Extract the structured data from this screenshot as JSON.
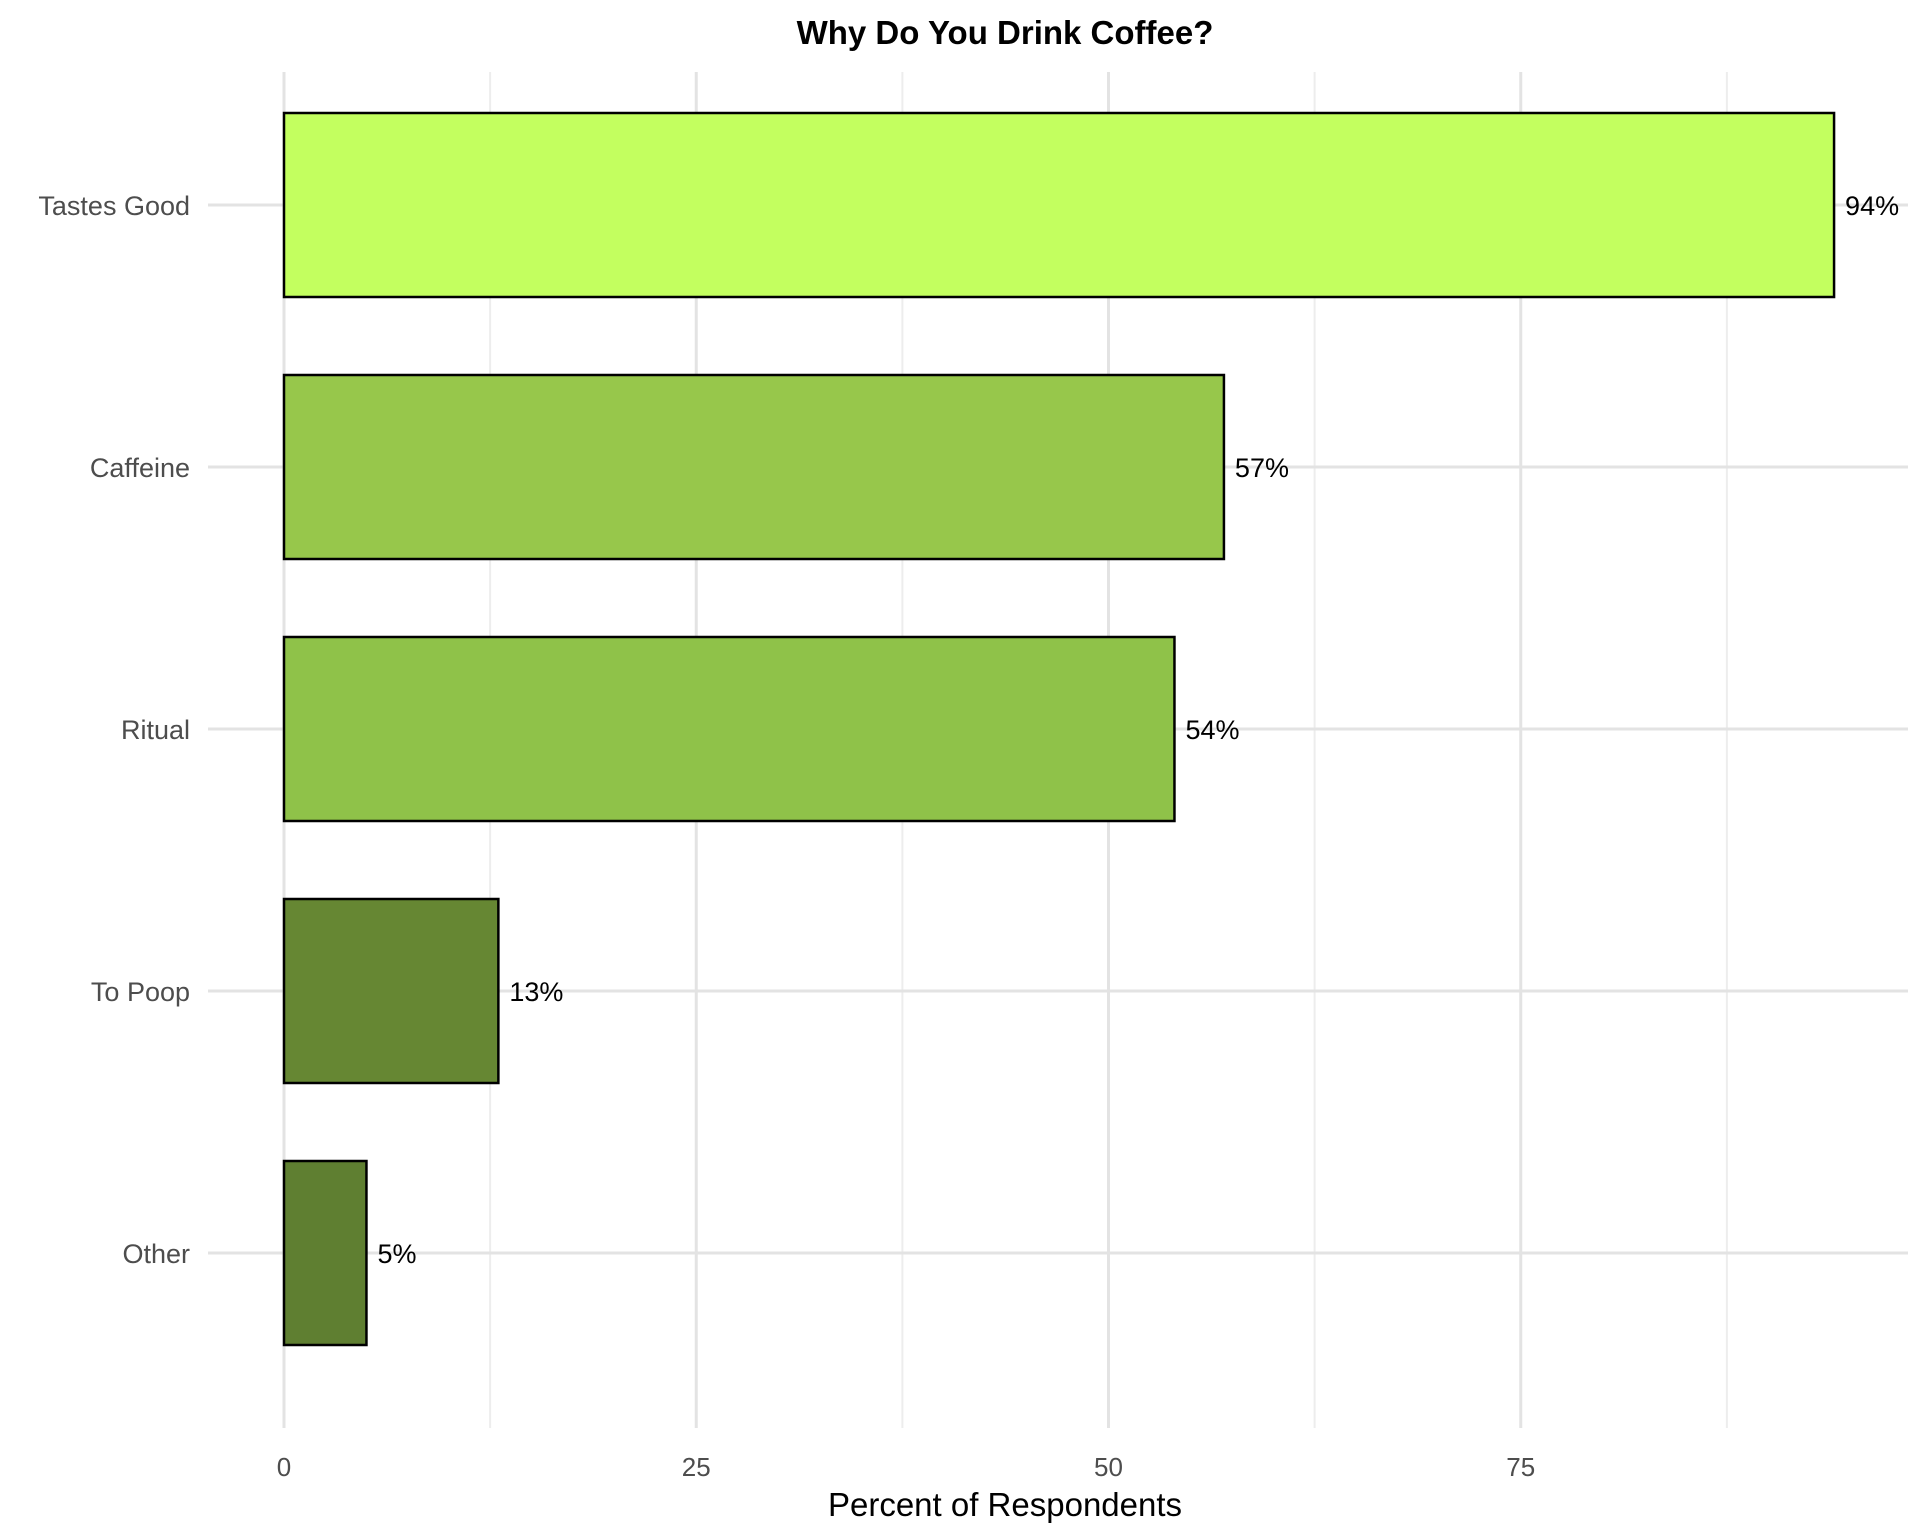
{
  "chart_data": {
    "type": "bar",
    "orientation": "horizontal",
    "title": "Why Do You Drink Coffee?",
    "xlabel": "Percent of Respondents",
    "ylabel": "",
    "categories": [
      "Tastes Good",
      "Caffeine",
      "Ritual",
      "To Poop",
      "Other"
    ],
    "values": [
      94,
      57,
      54,
      13,
      5
    ],
    "value_labels": [
      "94%",
      "57%",
      "54%",
      "13%",
      "5%"
    ],
    "colors": [
      "#c3ff5f",
      "#97c74b",
      "#8fc249",
      "#668733",
      "#5f7f31"
    ],
    "xlim": [
      0,
      98.5
    ],
    "xticks": [
      0,
      25,
      50,
      75
    ],
    "xtick_labels": [
      "0",
      "25",
      "50",
      "75"
    ],
    "grid": true,
    "legend": "none",
    "style": {
      "bar_edge_color": "#000000",
      "grid_major_color": "#e3e3e3",
      "grid_minor_color": "#ededed"
    }
  }
}
